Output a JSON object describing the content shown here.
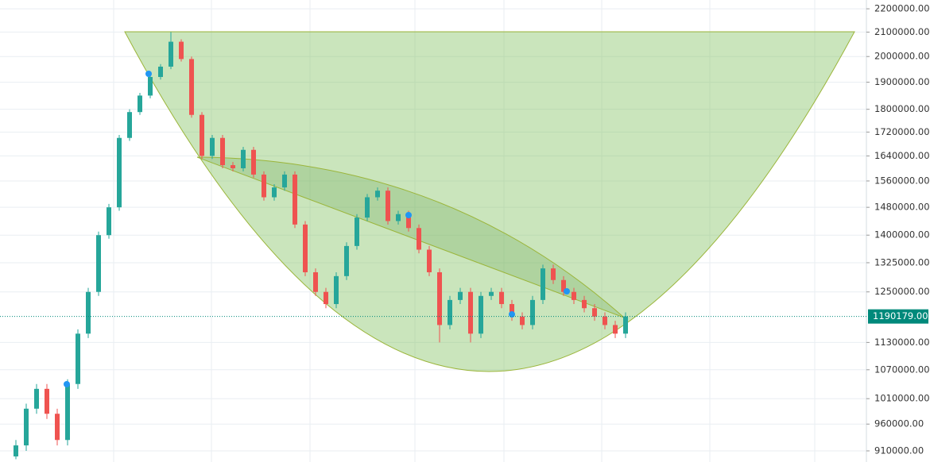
{
  "chart_data": {
    "type": "candlestick",
    "log_scale": true,
    "grid": true,
    "up_color": "#26a69a",
    "down_color": "#ef5350",
    "ylim": [
      890000,
      2239000
    ],
    "yticks": [
      {
        "value": 2200000,
        "label": "2200000.00"
      },
      {
        "value": 2100000,
        "label": "2100000.00"
      },
      {
        "value": 2000000,
        "label": "2000000.00"
      },
      {
        "value": 1900000,
        "label": "1900000.00"
      },
      {
        "value": 1800000,
        "label": "1800000.00"
      },
      {
        "value": 1720000,
        "label": "1720000.00"
      },
      {
        "value": 1640000,
        "label": "1640000.00"
      },
      {
        "value": 1560000,
        "label": "1560000.00"
      },
      {
        "value": 1480000,
        "label": "1480000.00"
      },
      {
        "value": 1400000,
        "label": "1400000.00"
      },
      {
        "value": 1325000,
        "label": "1325000.00"
      },
      {
        "value": 1250000,
        "label": "1250000.00"
      },
      {
        "value": 1130000,
        "label": "1130000.00"
      },
      {
        "value": 1070000,
        "label": "1070000.00"
      },
      {
        "value": 1010000,
        "label": "1010000.00"
      },
      {
        "value": 960000,
        "label": "960000.00"
      },
      {
        "value": 910000,
        "label": "910000.00"
      }
    ],
    "last_price": {
      "value": 1190179,
      "label": "1190179.00"
    },
    "last_price_color": "#00897b",
    "open": [
      900000,
      920000,
      990000,
      1030000,
      980000,
      930000,
      1040000,
      1150000,
      1250000,
      1400000,
      1480000,
      1700000,
      1790000,
      1850000,
      1920000,
      1960000,
      2060000,
      1990000,
      1780000,
      1640000,
      1700000,
      1610000,
      1600000,
      1660000,
      1580000,
      1510000,
      1540000,
      1580000,
      1430000,
      1300000,
      1250000,
      1220000,
      1290000,
      1370000,
      1450000,
      1510000,
      1530000,
      1440000,
      1460000,
      1420000,
      1360000,
      1300000,
      1170000,
      1230000,
      1250000,
      1150000,
      1240000,
      1250000,
      1220000,
      1190000,
      1170000,
      1230000,
      1310000,
      1280000,
      1250000,
      1230000,
      1210000,
      1190000,
      1170000,
      1150000
    ],
    "high": [
      930000,
      1000000,
      1040000,
      1040000,
      990000,
      1050000,
      1160000,
      1260000,
      1410000,
      1490000,
      1710000,
      1800000,
      1860000,
      1930000,
      1970000,
      2100000,
      2070000,
      2000000,
      1790000,
      1710000,
      1710000,
      1620000,
      1670000,
      1670000,
      1590000,
      1550000,
      1590000,
      1590000,
      1440000,
      1310000,
      1260000,
      1300000,
      1380000,
      1460000,
      1520000,
      1540000,
      1540000,
      1470000,
      1470000,
      1430000,
      1370000,
      1310000,
      1240000,
      1260000,
      1260000,
      1250000,
      1260000,
      1260000,
      1230000,
      1200000,
      1240000,
      1320000,
      1320000,
      1290000,
      1260000,
      1240000,
      1220000,
      1200000,
      1180000,
      1200000
    ],
    "low": [
      895000,
      910000,
      980000,
      970000,
      920000,
      920000,
      1030000,
      1140000,
      1240000,
      1390000,
      1470000,
      1690000,
      1780000,
      1840000,
      1910000,
      1950000,
      1980000,
      1770000,
      1630000,
      1630000,
      1600000,
      1590000,
      1590000,
      1570000,
      1500000,
      1500000,
      1530000,
      1420000,
      1290000,
      1240000,
      1210000,
      1210000,
      1280000,
      1360000,
      1440000,
      1500000,
      1430000,
      1430000,
      1410000,
      1350000,
      1290000,
      1130000,
      1160000,
      1220000,
      1130000,
      1140000,
      1230000,
      1210000,
      1180000,
      1160000,
      1160000,
      1220000,
      1270000,
      1240000,
      1220000,
      1200000,
      1180000,
      1160000,
      1140000,
      1140000
    ],
    "close": [
      920000,
      990000,
      1030000,
      980000,
      930000,
      1040000,
      1150000,
      1250000,
      1400000,
      1480000,
      1700000,
      1790000,
      1850000,
      1920000,
      1960000,
      2060000,
      1990000,
      1780000,
      1640000,
      1700000,
      1610000,
      1600000,
      1660000,
      1580000,
      1510000,
      1540000,
      1580000,
      1430000,
      1300000,
      1250000,
      1220000,
      1290000,
      1370000,
      1450000,
      1510000,
      1530000,
      1440000,
      1460000,
      1420000,
      1360000,
      1300000,
      1170000,
      1230000,
      1250000,
      1150000,
      1240000,
      1250000,
      1220000,
      1190000,
      1170000,
      1230000,
      1310000,
      1280000,
      1250000,
      1230000,
      1210000,
      1190000,
      1170000,
      1150000,
      1190179
    ]
  }
}
